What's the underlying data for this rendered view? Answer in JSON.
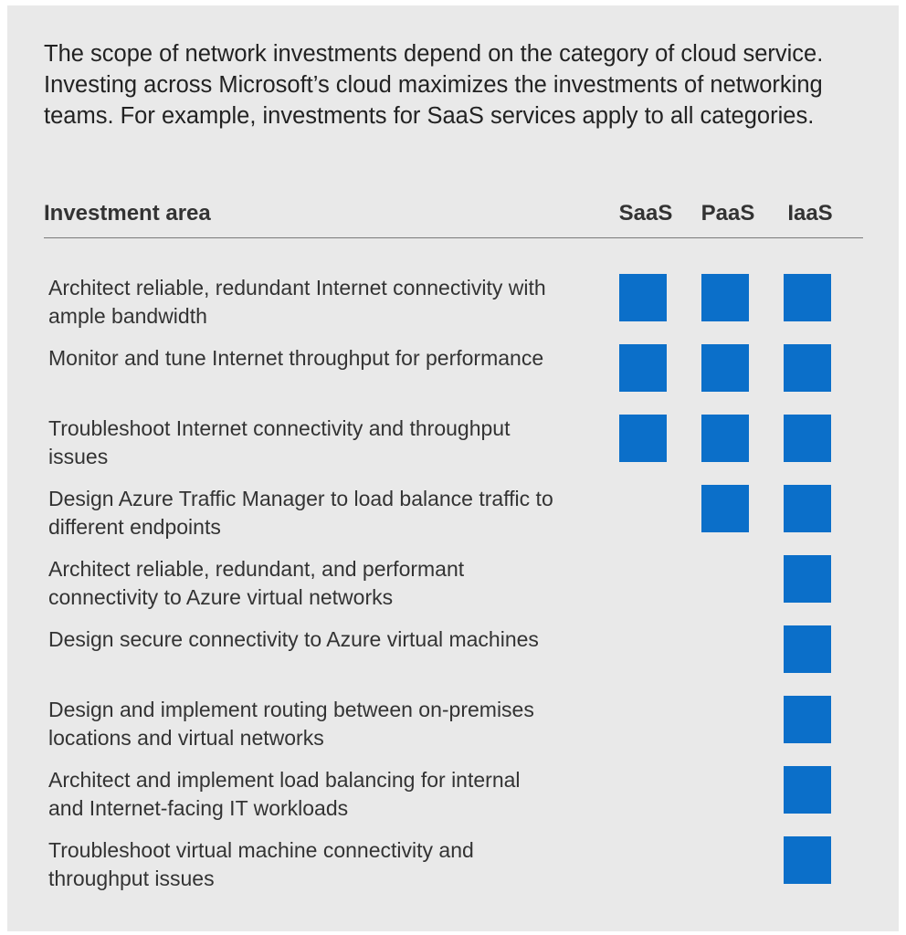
{
  "intro": "The scope of network investments depend on the category of cloud service. Investing across Microsoft’s cloud maximizes the investments of networking teams. For example, investments for SaaS services apply to all categories.",
  "columns": {
    "area": "Investment area",
    "saas": "SaaS",
    "paas": "PaaS",
    "iaas": "IaaS"
  },
  "accent_color": "#0b6fc9",
  "rows": [
    {
      "label": "Architect reliable, redundant Internet connectivity with ample bandwidth",
      "saas": true,
      "paas": true,
      "iaas": true
    },
    {
      "label": "Monitor and tune Internet throughput for performance",
      "saas": true,
      "paas": true,
      "iaas": true
    },
    {
      "label": "Troubleshoot Internet connectivity and throughput issues",
      "saas": true,
      "paas": true,
      "iaas": true
    },
    {
      "label": "Design Azure Traffic Manager to load balance traffic to different endpoints",
      "saas": false,
      "paas": true,
      "iaas": true
    },
    {
      "label": "Architect reliable, redundant, and performant connectivity to Azure virtual networks",
      "saas": false,
      "paas": false,
      "iaas": true
    },
    {
      "label": "Design secure connectivity to Azure virtual machines",
      "saas": false,
      "paas": false,
      "iaas": true
    },
    {
      "label": "Design and implement routing between on-premises locations and virtual networks",
      "saas": false,
      "paas": false,
      "iaas": true
    },
    {
      "label": "Architect and implement load balancing for internal and Internet-facing IT workloads",
      "saas": false,
      "paas": false,
      "iaas": true
    },
    {
      "label": "Troubleshoot virtual machine connectivity and throughput issues",
      "saas": false,
      "paas": false,
      "iaas": true
    }
  ]
}
